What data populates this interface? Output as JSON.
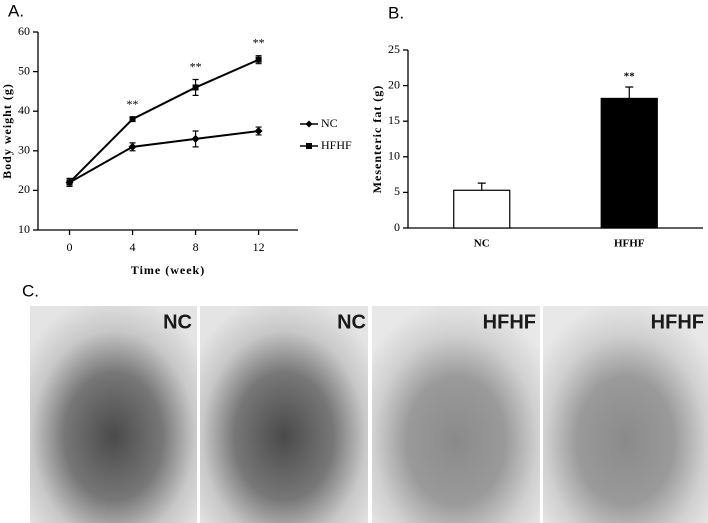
{
  "chart_data": [
    {
      "type": "line",
      "panel": "A.",
      "x_label": "Time (week)",
      "y_label": "Body weight (g)",
      "x": [
        0,
        4,
        8,
        12
      ],
      "xlim": [
        -2,
        14.5
      ],
      "xticks": [
        0,
        4,
        8,
        12
      ],
      "ylim": [
        10,
        60
      ],
      "yticks": [
        10,
        20,
        30,
        40,
        50,
        60
      ],
      "series": [
        {
          "name": "NC",
          "color": "#000000",
          "marker": "diamond",
          "values": [
            22,
            31,
            33,
            35
          ],
          "errors": [
            1,
            1,
            2,
            1
          ]
        },
        {
          "name": "HFHF",
          "color": "#000000",
          "marker": "square",
          "values": [
            22,
            38,
            46,
            53
          ],
          "errors": [
            1,
            0.5,
            2,
            1
          ]
        }
      ],
      "annotations": [
        {
          "text": "**",
          "x": 4
        },
        {
          "text": "**",
          "x": 8
        },
        {
          "text": "**",
          "x": 12
        }
      ]
    },
    {
      "type": "bar",
      "panel": "B.",
      "y_label": "Mesenteric fat (g)",
      "categories": [
        "NC",
        "HFHF"
      ],
      "values": [
        5.3,
        18.2
      ],
      "errors": [
        1,
        1.6
      ],
      "colors": [
        "#ffffff",
        "#000000"
      ],
      "ylim": [
        0,
        25
      ],
      "yticks": [
        0,
        5,
        10,
        15,
        20,
        25
      ],
      "annotations": [
        {
          "text": "**",
          "category": "HFHF"
        }
      ]
    }
  ],
  "photos": {
    "panel": "C.",
    "labels": [
      "NC",
      "NC",
      "HFHF",
      "HFHF"
    ]
  }
}
